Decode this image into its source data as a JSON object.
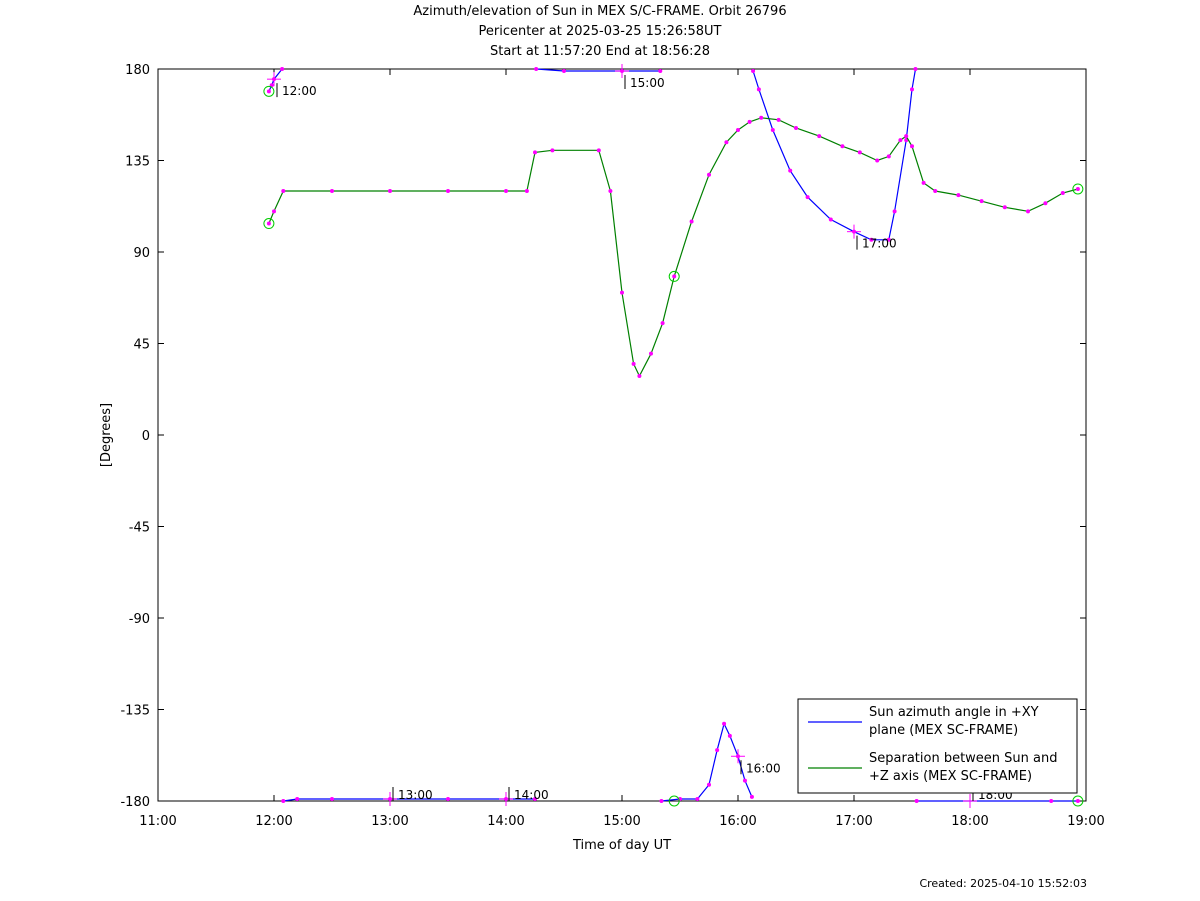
{
  "chart_data": {
    "type": "line",
    "title": "Azimuth/elevation of Sun in MEX S/C-FRAME.  Orbit 26796",
    "subtitle": [
      "Pericenter at 2025-03-25 15:26:58UT",
      "Start at 11:57:20 End at 18:56:28"
    ],
    "xlabel": "Time of day UT",
    "ylabel": "[Degrees]",
    "xlim": [
      11.0,
      19.0
    ],
    "ylim": [
      -180,
      180
    ],
    "x_tick_labels": [
      "11:00",
      "12:00",
      "13:00",
      "14:00",
      "15:00",
      "16:00",
      "17:00",
      "18:00",
      "19:00"
    ],
    "y_ticks": [
      180,
      135,
      90,
      45,
      0,
      -45,
      -90,
      -135,
      -180
    ],
    "legend": {
      "position": "bottom-right",
      "entries": [
        {
          "lines": [
            "Sun azimuth angle in +XY",
            "plane (MEX SC-FRAME)"
          ],
          "color": "#0000ff"
        },
        {
          "lines": [
            "Separation between Sun and",
            "+Z axis (MEX SC-FRAME)"
          ],
          "color": "#008000"
        }
      ]
    },
    "series": [
      {
        "name": "Sun azimuth angle in +XY plane (MEX SC-FRAME)",
        "color": "#0000ff",
        "marker_color": "#ff00ff",
        "points": [
          [
            11.956,
            169
          ],
          [
            11.98,
            172
          ],
          [
            12.0,
            175
          ],
          [
            12.07,
            180
          ],
          [
            null,
            null
          ],
          [
            12.08,
            -180
          ],
          [
            12.2,
            -179
          ],
          [
            12.5,
            -179
          ],
          [
            13.0,
            -179
          ],
          [
            13.5,
            -179
          ],
          [
            14.0,
            -179
          ],
          [
            14.25,
            -179
          ],
          [
            null,
            null
          ],
          [
            14.26,
            180
          ],
          [
            14.5,
            179
          ],
          [
            15.0,
            179
          ],
          [
            15.33,
            179
          ],
          [
            null,
            null
          ],
          [
            15.34,
            -180
          ],
          [
            15.5,
            -179
          ],
          [
            15.65,
            -179
          ],
          [
            15.75,
            -172
          ],
          [
            15.82,
            -155
          ],
          [
            15.88,
            -142
          ],
          [
            15.93,
            -148
          ],
          [
            16.0,
            -158
          ],
          [
            16.06,
            -170
          ],
          [
            16.12,
            -178
          ],
          [
            null,
            null
          ],
          [
            16.13,
            179
          ],
          [
            16.18,
            170
          ],
          [
            16.3,
            150
          ],
          [
            16.45,
            130
          ],
          [
            16.6,
            117
          ],
          [
            16.8,
            106
          ],
          [
            17.0,
            100
          ],
          [
            17.15,
            96
          ],
          [
            17.3,
            96
          ],
          [
            17.35,
            110
          ],
          [
            17.45,
            145
          ],
          [
            17.5,
            170
          ],
          [
            17.53,
            180
          ],
          [
            null,
            null
          ],
          [
            17.54,
            -180
          ],
          [
            18.7,
            -180
          ],
          [
            18.93,
            -180
          ]
        ]
      },
      {
        "name": "Separation between Sun and +Z axis (MEX SC-FRAME)",
        "color": "#008000",
        "marker_color": "#ff00ff",
        "points": [
          [
            11.956,
            104
          ],
          [
            12.0,
            110
          ],
          [
            12.08,
            120
          ],
          [
            12.5,
            120
          ],
          [
            13.0,
            120
          ],
          [
            13.5,
            120
          ],
          [
            14.0,
            120
          ],
          [
            14.18,
            120
          ],
          [
            14.25,
            139
          ],
          [
            14.4,
            140
          ],
          [
            14.8,
            140
          ],
          [
            14.9,
            120
          ],
          [
            15.0,
            70
          ],
          [
            15.1,
            35
          ],
          [
            15.15,
            29
          ],
          [
            15.25,
            40
          ],
          [
            15.35,
            55
          ],
          [
            15.45,
            78
          ],
          [
            15.6,
            105
          ],
          [
            15.75,
            128
          ],
          [
            15.9,
            144
          ],
          [
            16.0,
            150
          ],
          [
            16.1,
            154
          ],
          [
            16.2,
            156
          ],
          [
            16.35,
            155
          ],
          [
            16.5,
            151
          ],
          [
            16.7,
            147
          ],
          [
            16.9,
            142
          ],
          [
            17.05,
            139
          ],
          [
            17.2,
            135
          ],
          [
            17.3,
            137
          ],
          [
            17.4,
            145
          ],
          [
            17.45,
            147
          ],
          [
            17.5,
            142
          ],
          [
            17.6,
            124
          ],
          [
            17.7,
            120
          ],
          [
            17.9,
            118
          ],
          [
            18.1,
            115
          ],
          [
            18.3,
            112
          ],
          [
            18.5,
            110
          ],
          [
            18.65,
            114
          ],
          [
            18.8,
            119
          ],
          [
            18.93,
            121
          ]
        ]
      }
    ],
    "time_annotations": [
      {
        "label": "12:00",
        "x": 12.0,
        "y": 175
      },
      {
        "label": "13:00",
        "x": 13.0,
        "y": -179
      },
      {
        "label": "14:00",
        "x": 14.0,
        "y": -179
      },
      {
        "label": "15:00",
        "x": 15.0,
        "y": 179
      },
      {
        "label": "16:00",
        "x": 16.0,
        "y": -158
      },
      {
        "label": "17:00",
        "x": 17.0,
        "y": 100
      },
      {
        "label": "18:00",
        "x": 18.0,
        "y": -180
      }
    ],
    "circle_markers": [
      {
        "x": 11.956,
        "y": 169
      },
      {
        "x": 11.956,
        "y": 104
      },
      {
        "x": 15.45,
        "y": -180
      },
      {
        "x": 15.45,
        "y": 78
      },
      {
        "x": 18.93,
        "y": -180
      },
      {
        "x": 18.93,
        "y": 121
      }
    ]
  },
  "footer": {
    "created": "Created: 2025-04-10 15:52:03"
  }
}
